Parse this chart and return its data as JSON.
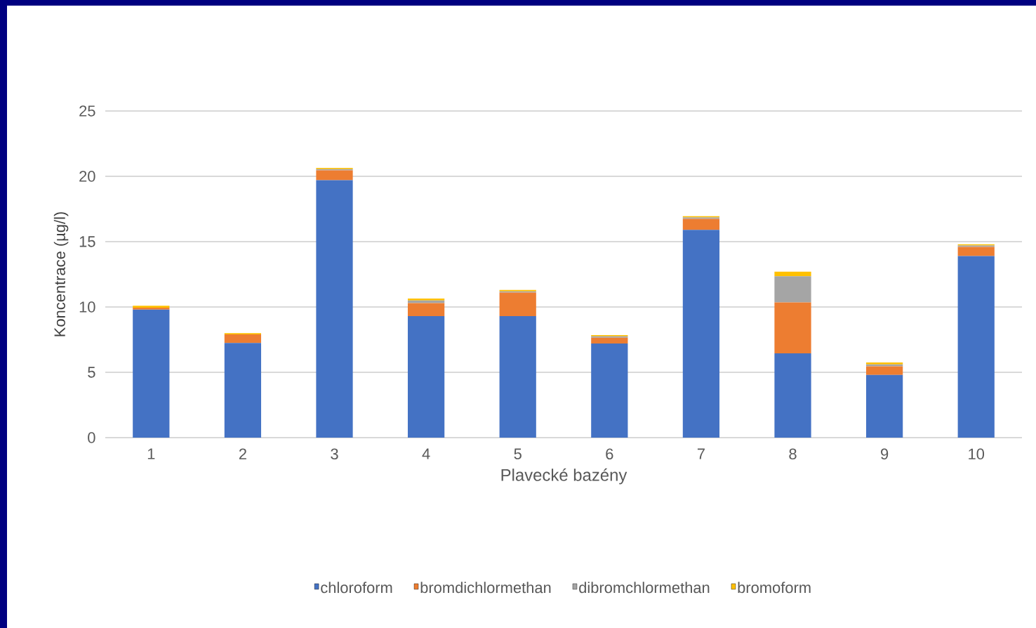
{
  "chart_data": {
    "type": "bar",
    "stacked": true,
    "xlabel": "Plavecké bazény",
    "ylabel": "Koncentrace (µg/l)",
    "categories": [
      "1",
      "2",
      "3",
      "4",
      "5",
      "6",
      "7",
      "8",
      "9",
      "10"
    ],
    "series": [
      {
        "name": "chloroform",
        "color": "#4472c4",
        "values": [
          9.8,
          7.25,
          19.7,
          9.3,
          9.3,
          7.2,
          15.9,
          6.45,
          4.8,
          13.9
        ]
      },
      {
        "name": "bromdichlormethan",
        "color": "#ed7d31",
        "values": [
          0.15,
          0.65,
          0.75,
          1.0,
          1.8,
          0.45,
          0.85,
          3.9,
          0.65,
          0.7
        ]
      },
      {
        "name": "dibromchlormethan",
        "color": "#a5a5a5",
        "values": [
          null,
          null,
          0.1,
          0.2,
          0.1,
          0.1,
          0.1,
          2.0,
          0.15,
          0.1
        ]
      },
      {
        "name": "bromoform",
        "color": "#ffc000",
        "values": [
          0.15,
          0.1,
          0.1,
          0.15,
          0.1,
          0.1,
          0.1,
          0.35,
          0.15,
          0.1
        ]
      }
    ],
    "ylim": [
      0,
      25
    ],
    "yticks": [
      0,
      5,
      10,
      15,
      20,
      25
    ],
    "grid": "y",
    "legend": "bottom"
  }
}
